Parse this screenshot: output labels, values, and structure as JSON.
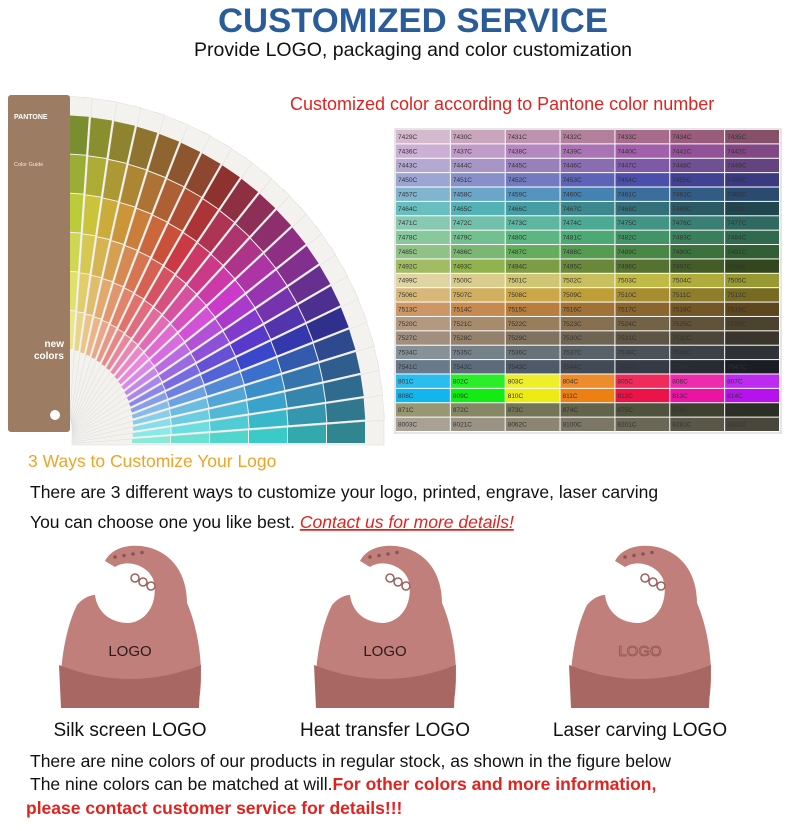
{
  "header": {
    "title": "CUSTOMIZED SERVICE",
    "subtitle": "Provide LOGO, packaging and color customization"
  },
  "pantone_fan": {
    "brand": "PANTONE",
    "guide": "Color Guide",
    "badge": [
      "new",
      "colors"
    ]
  },
  "pantone_grid": {
    "caption": "Customized color according to Pantone color number",
    "rows": [
      [
        "7429C",
        "7430C",
        "7431C",
        "7432C",
        "7433C",
        "7434C",
        "7435C"
      ],
      [
        "7436C",
        "7437C",
        "7438C",
        "7439C",
        "7440C",
        "7441C",
        "7442C"
      ],
      [
        "7443C",
        "7444C",
        "7445C",
        "7446C",
        "7447C",
        "7448C",
        "7449C"
      ],
      [
        "7450C",
        "7451C",
        "7452C",
        "7453C",
        "7454C",
        "7455C",
        "7456C"
      ],
      [
        "7457C",
        "7458C",
        "7459C",
        "7460C",
        "7461C",
        "7462C",
        "7463C"
      ],
      [
        "7464C",
        "7465C",
        "7466C",
        "7467C",
        "7468C",
        "7469C",
        "7470C"
      ],
      [
        "7471C",
        "7472C",
        "7473C",
        "7474C",
        "7475C",
        "7476C",
        "7477C"
      ],
      [
        "7478C",
        "7479C",
        "7480C",
        "7481C",
        "7482C",
        "7483C",
        "7484C"
      ],
      [
        "7485C",
        "7486C",
        "7487C",
        "7488C",
        "7489C",
        "7490C",
        "7491C"
      ],
      [
        "7492C",
        "7493C",
        "7494C",
        "7495C",
        "7496C",
        "7497C",
        "7498C"
      ],
      [
        "7499C",
        "7500C",
        "7501C",
        "7502C",
        "7503C",
        "7504C",
        "7505C"
      ],
      [
        "7506C",
        "7507C",
        "7508C",
        "7509C",
        "7510C",
        "7511C",
        "7512C"
      ],
      [
        "7513C",
        "7514C",
        "7515C",
        "7516C",
        "7517C",
        "7518C",
        "7519C"
      ],
      [
        "7520C",
        "7521C",
        "7522C",
        "7523C",
        "7524C",
        "7525C",
        "7526C"
      ],
      [
        "7527C",
        "7528C",
        "7529C",
        "7530C",
        "7531C",
        "7532C",
        "7533C"
      ],
      [
        "7534C",
        "7535C",
        "7536C",
        "7537C",
        "7538C",
        "7539C",
        "7540C"
      ],
      [
        "7541C",
        "7542C",
        "7543C",
        "7544C",
        "7545C",
        "7546C",
        "7547C"
      ],
      [
        "801C",
        "802C",
        "803C",
        "804C",
        "805C",
        "806C",
        "807C"
      ],
      [
        "808C",
        "809C",
        "810C",
        "811C",
        "812C",
        "813C",
        "814C"
      ],
      [
        "871C",
        "872C",
        "873C",
        "874C",
        "875C",
        "876C",
        "877C"
      ],
      [
        "8003C",
        "8021C",
        "8062C",
        "8100C",
        "8201C",
        "8281C",
        "8321C"
      ]
    ]
  },
  "logo_section": {
    "heading": "3 Ways to Customize Your Logo",
    "line1": "There are 3 different ways to customize your logo, printed, engrave, laser carving",
    "line2": "You can choose one you like best. ",
    "link": "Contact us for more details!"
  },
  "methods": [
    {
      "label": "Silk screen LOGO",
      "logo": "LOGO"
    },
    {
      "label": "Heat transfer LOGO",
      "logo": "LOGO"
    },
    {
      "label": "Laser carving LOGO",
      "logo": "LOGO"
    }
  ],
  "stock": {
    "line1": "There are nine colors of our products in regular stock, as shown in the figure below",
    "line2": "The nine colors can be matched at will.",
    "line2_red": "For other colors and more information,",
    "line3_red": "please contact customer service for details!!!"
  }
}
